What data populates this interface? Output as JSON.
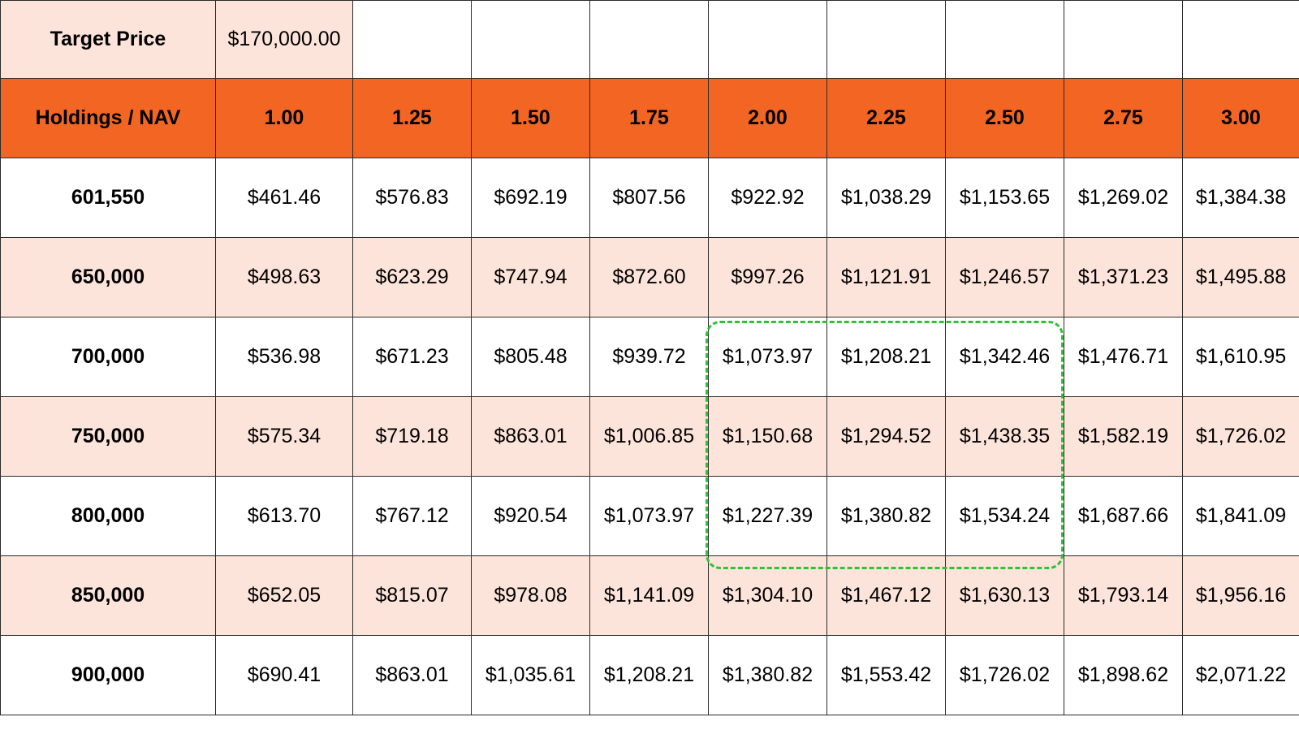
{
  "target": {
    "label": "Target Price",
    "value": "$170,000.00"
  },
  "header": {
    "corner": "Holdings / NAV",
    "multipliers": [
      "1.00",
      "1.25",
      "1.50",
      "1.75",
      "2.00",
      "2.25",
      "2.50",
      "2.75",
      "3.00"
    ]
  },
  "rows": [
    {
      "holdings": "601,550",
      "values": [
        "$461.46",
        "$576.83",
        "$692.19",
        "$807.56",
        "$922.92",
        "$1,038.29",
        "$1,153.65",
        "$1,269.02",
        "$1,384.38"
      ]
    },
    {
      "holdings": "650,000",
      "values": [
        "$498.63",
        "$623.29",
        "$747.94",
        "$872.60",
        "$997.26",
        "$1,121.91",
        "$1,246.57",
        "$1,371.23",
        "$1,495.88"
      ]
    },
    {
      "holdings": "700,000",
      "values": [
        "$536.98",
        "$671.23",
        "$805.48",
        "$939.72",
        "$1,073.97",
        "$1,208.21",
        "$1,342.46",
        "$1,476.71",
        "$1,610.95"
      ]
    },
    {
      "holdings": "750,000",
      "values": [
        "$575.34",
        "$719.18",
        "$863.01",
        "$1,006.85",
        "$1,150.68",
        "$1,294.52",
        "$1,438.35",
        "$1,582.19",
        "$1,726.02"
      ]
    },
    {
      "holdings": "800,000",
      "values": [
        "$613.70",
        "$767.12",
        "$920.54",
        "$1,073.97",
        "$1,227.39",
        "$1,380.82",
        "$1,534.24",
        "$1,687.66",
        "$1,841.09"
      ]
    },
    {
      "holdings": "850,000",
      "values": [
        "$652.05",
        "$815.07",
        "$978.08",
        "$1,141.09",
        "$1,304.10",
        "$1,467.12",
        "$1,630.13",
        "$1,793.14",
        "$1,956.16"
      ]
    },
    {
      "holdings": "900,000",
      "values": [
        "$690.41",
        "$863.01",
        "$1,035.61",
        "$1,208.21",
        "$1,380.82",
        "$1,553.42",
        "$1,726.02",
        "$1,898.62",
        "$2,071.22"
      ]
    }
  ],
  "colors": {
    "header": "#f26522",
    "shade": "#fde4da",
    "highlight": "#2ec236"
  }
}
